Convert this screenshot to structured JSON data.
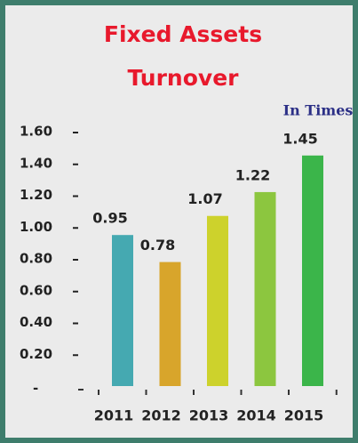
{
  "chart_data": {
    "type": "bar",
    "title": [
      "Fixed Assets",
      "Turnover"
    ],
    "annotation": "In Times",
    "categories": [
      "2011",
      "2012",
      "2013",
      "2014",
      "2015"
    ],
    "values": [
      0.95,
      0.78,
      1.07,
      1.22,
      1.45
    ],
    "colors": [
      "#45a9b1",
      "#d8a52b",
      "#cdd22c",
      "#8cc63f",
      "#3bb54a"
    ],
    "ylim": [
      0,
      1.6
    ],
    "yticks": [
      {
        "value": 0.2,
        "label": "0.20"
      },
      {
        "value": 0.4,
        "label": "0.40"
      },
      {
        "value": 0.6,
        "label": "0.60"
      },
      {
        "value": 0.8,
        "label": "0.80"
      },
      {
        "value": 1.0,
        "label": "1.00"
      },
      {
        "value": 1.2,
        "label": "1.20"
      },
      {
        "value": 1.4,
        "label": "1.40"
      },
      {
        "value": 1.6,
        "label": "1.60"
      }
    ],
    "grid": false
  }
}
